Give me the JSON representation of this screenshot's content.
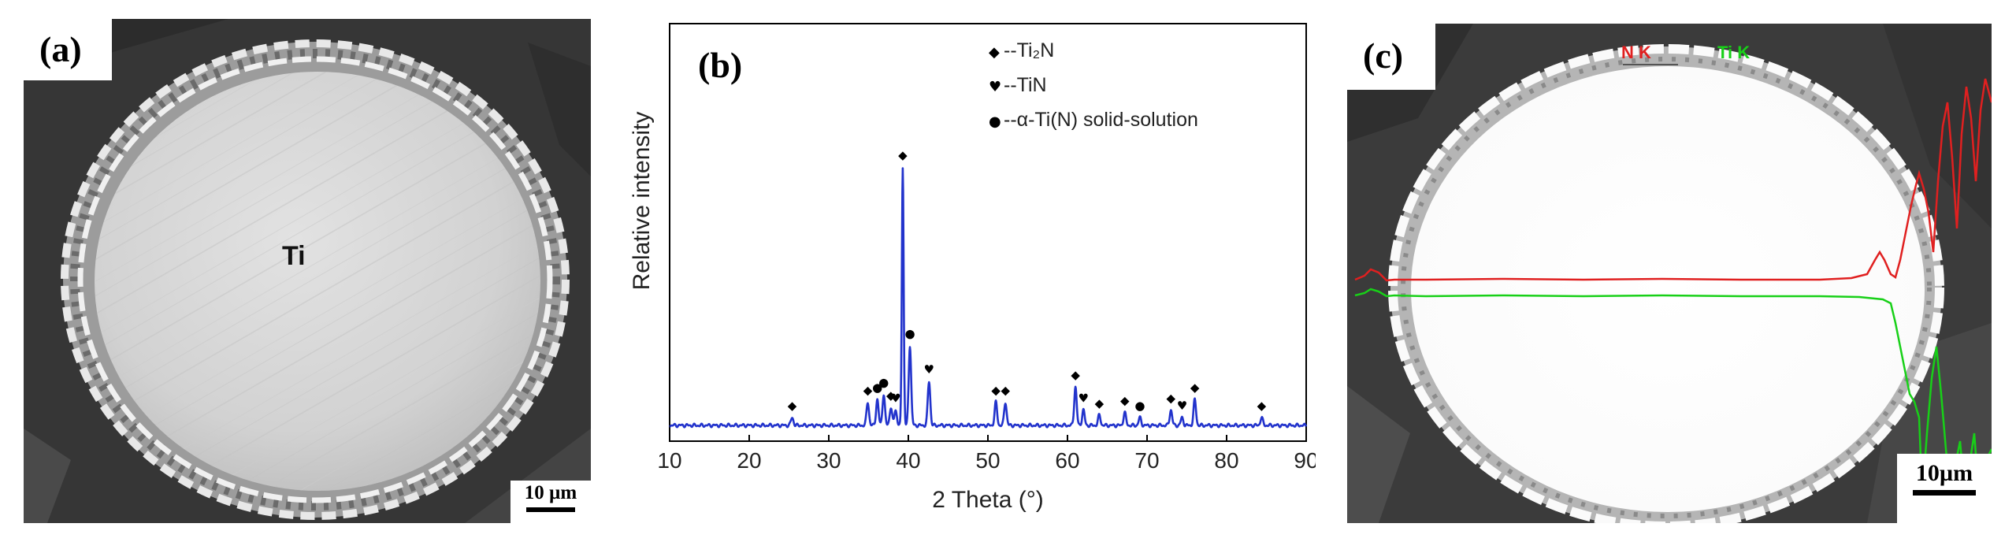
{
  "panels": {
    "a": {
      "tag": "(a)",
      "label": "Ti",
      "scale_bar": "10 µm"
    },
    "b": {
      "tag": "(b)"
    },
    "c": {
      "tag": "(c)",
      "line_label_1": "N K",
      "line_label_2": "Ti K",
      "scale_bar": "10µm",
      "line_colors": {
        "N K": "#e02020",
        "Ti K": "#18d018"
      }
    }
  },
  "chart_data": {
    "type": "line",
    "xlabel": "2 Theta (°)",
    "ylabel": "Relative intensity",
    "xlim": [
      10,
      90
    ],
    "xticks": [
      10,
      20,
      30,
      40,
      50,
      60,
      70,
      80,
      90
    ],
    "line_color": "#2233cc",
    "yticks_shown": false,
    "grid": false,
    "legend_position": "top-right",
    "legend": [
      {
        "marker": "◆",
        "text": "--Ti₂N"
      },
      {
        "marker": "♥",
        "text": "--TiN"
      },
      {
        "marker": "●",
        "text": "--α-Ti(N) solid-solution"
      }
    ],
    "peaks": [
      {
        "x": 25.4,
        "height": 0.03,
        "marker": "◆"
      },
      {
        "x": 34.9,
        "height": 0.09,
        "marker": "◆"
      },
      {
        "x": 36.1,
        "height": 0.1,
        "marker": "●"
      },
      {
        "x": 36.9,
        "height": 0.12,
        "marker": "●"
      },
      {
        "x": 37.8,
        "height": 0.07,
        "marker": "◆"
      },
      {
        "x": 38.4,
        "height": 0.06,
        "marker": "♥"
      },
      {
        "x": 39.3,
        "height": 1.0,
        "marker": "◆"
      },
      {
        "x": 40.2,
        "height": 0.31,
        "marker": "●"
      },
      {
        "x": 42.6,
        "height": 0.17,
        "marker": "♥"
      },
      {
        "x": 51.0,
        "height": 0.09,
        "marker": "◆"
      },
      {
        "x": 52.2,
        "height": 0.09,
        "marker": "◆"
      },
      {
        "x": 61.0,
        "height": 0.15,
        "marker": "◆"
      },
      {
        "x": 62.0,
        "height": 0.06,
        "marker": "♥"
      },
      {
        "x": 64.0,
        "height": 0.04,
        "marker": "◆"
      },
      {
        "x": 67.2,
        "height": 0.05,
        "marker": "◆"
      },
      {
        "x": 69.1,
        "height": 0.03,
        "marker": "●"
      },
      {
        "x": 73.0,
        "height": 0.06,
        "marker": "◆"
      },
      {
        "x": 74.4,
        "height": 0.03,
        "marker": "♥"
      },
      {
        "x": 76.0,
        "height": 0.1,
        "marker": "◆"
      },
      {
        "x": 84.4,
        "height": 0.03,
        "marker": "◆"
      }
    ]
  }
}
